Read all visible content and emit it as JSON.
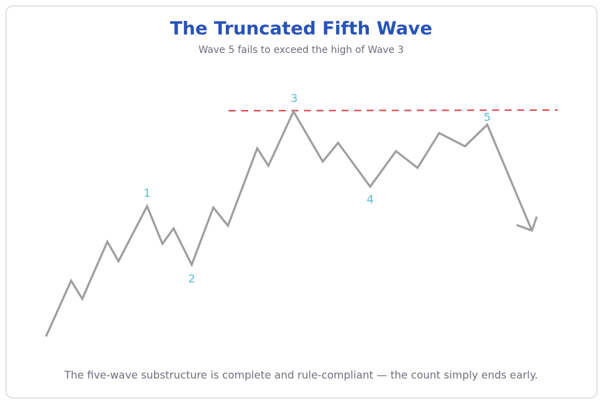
{
  "header": {
    "title": "The Truncated Fifth Wave",
    "subtitle": "Wave 5 fails to exceed the high of Wave 3"
  },
  "waves": {
    "labels": [
      "1",
      "2",
      "3",
      "4",
      "5"
    ]
  },
  "footer": {
    "note": "The five-wave substructure is complete and rule-compliant — the count simply ends early."
  }
}
